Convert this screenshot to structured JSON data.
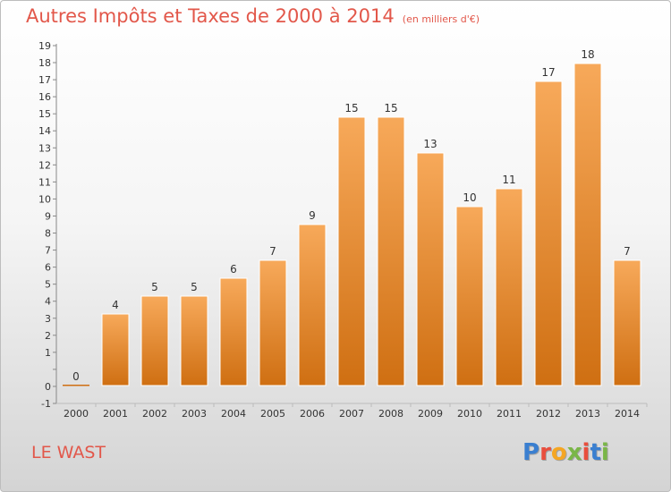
{
  "header": {
    "title": "Autres Impôts et Taxes de 2000 à 2014",
    "unit": "(en milliers d'€)"
  },
  "footer": {
    "commune": "LE WAST",
    "logo_text": "Proxiti",
    "logo_colors": [
      "#3a7fd0",
      "#e94e3d",
      "#f5a623",
      "#7ab648",
      "#e94e3d",
      "#3a7fd0",
      "#7ab648"
    ]
  },
  "colors": {
    "bar_top": "#f7a95a",
    "bar_bottom": "#cf6f12",
    "text": "#e2574a",
    "axis_text": "#333333",
    "grid": "#dddddd"
  },
  "chart_data": {
    "type": "bar",
    "title": "Autres Impôts et Taxes de 2000 à 2014",
    "categories": [
      "2000",
      "2001",
      "2002",
      "2003",
      "2004",
      "2005",
      "2006",
      "2007",
      "2008",
      "2009",
      "2010",
      "2011",
      "2012",
      "2013",
      "2014"
    ],
    "values": [
      0,
      4,
      5,
      5,
      6,
      7,
      9,
      15,
      15,
      13,
      10,
      11,
      17,
      18,
      7
    ],
    "data_labels": [
      "0",
      "4",
      "5",
      "5",
      "6",
      "7",
      "9",
      "15",
      "15",
      "13",
      "10",
      "11",
      "17",
      "18",
      "7"
    ],
    "y_ticks": [
      "-1",
      "0",
      "",
      "1",
      "2",
      "3",
      "4",
      "5",
      "6",
      "7",
      "8",
      "9",
      "10",
      "11",
      "12",
      "13",
      "14",
      "15",
      "16",
      "17",
      "18",
      "19"
    ],
    "ylim": [
      -1,
      19
    ],
    "grid": false
  }
}
